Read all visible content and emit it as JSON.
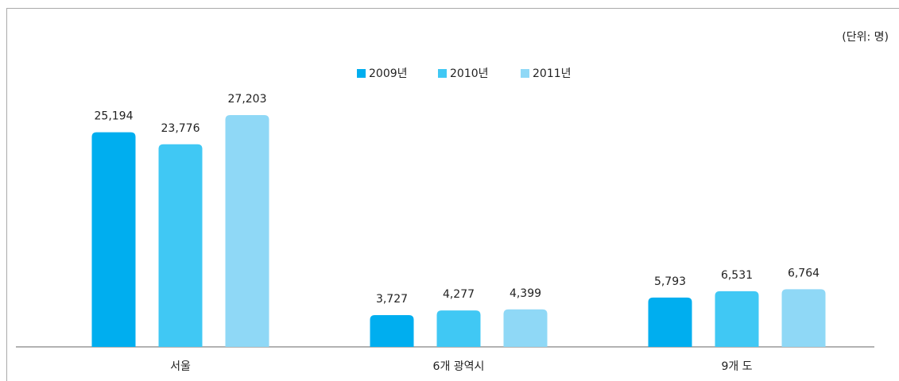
{
  "chart_data": {
    "type": "bar",
    "unit_note": "(단위: 명)",
    "categories": [
      "서울",
      "6개 광역시",
      "9개 도"
    ],
    "series": [
      {
        "name": "2009년",
        "color": "#00aeef",
        "values": [
          25194,
          3727,
          5793
        ],
        "value_labels": [
          "25,194",
          "3,727",
          "5,793"
        ]
      },
      {
        "name": "2010년",
        "color": "#40c8f4",
        "values": [
          23776,
          4277,
          6531
        ],
        "value_labels": [
          "23,776",
          "4,277",
          "6,531"
        ]
      },
      {
        "name": "2011년",
        "color": "#8fd8f6",
        "values": [
          27203,
          4399,
          6764
        ],
        "value_labels": [
          "27,203",
          "4,399",
          "6,764"
        ]
      }
    ],
    "legend": "top"
  }
}
